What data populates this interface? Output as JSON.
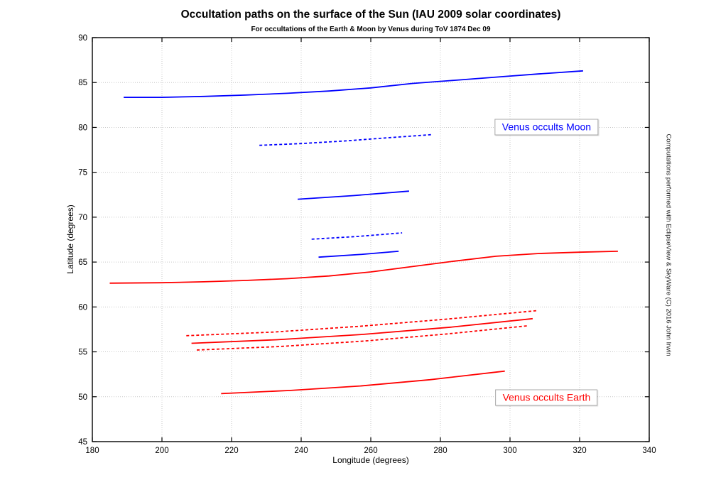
{
  "chart_data": {
    "type": "line",
    "title": "Occultation paths on the surface of the Sun (IAU 2009 solar coordinates)",
    "subtitle": "For occultations of the Earth & Moon by Venus during ToV 1874 Dec 09",
    "xlabel": "Longitude (degrees)",
    "ylabel": "Latitude (degrees)",
    "xlim": [
      180,
      340
    ],
    "ylim": [
      45,
      90
    ],
    "xticks": [
      180,
      200,
      220,
      240,
      260,
      280,
      300,
      320,
      340
    ],
    "yticks": [
      45,
      50,
      55,
      60,
      65,
      70,
      75,
      80,
      85,
      90
    ],
    "grid": true,
    "legend_position": "none",
    "colors": {
      "moon_paths": "#0000ff",
      "earth_paths": "#ff0000",
      "grid": "#c9c9c9",
      "axis": "#000000"
    },
    "annotations": [
      {
        "text": "Venus occults Moon",
        "x": 310.5,
        "y": 80.0,
        "color": "#0000ff"
      },
      {
        "text": "Venus occults Earth",
        "x": 310.5,
        "y": 49.9,
        "color": "#ff0000"
      }
    ],
    "side_note": "Computations performed with EclipseView & SkyWare (C) 2016 John Irwin",
    "series": [
      {
        "name": "moon-path-long-solid",
        "group": "Venus occults Moon",
        "color": "#0000ff",
        "style": "solid",
        "points": [
          [
            189,
            83.35
          ],
          [
            200,
            83.35
          ],
          [
            212,
            83.45
          ],
          [
            224,
            83.6
          ],
          [
            236,
            83.8
          ],
          [
            248,
            84.05
          ],
          [
            260,
            84.4
          ],
          [
            272,
            84.9
          ],
          [
            284,
            85.25
          ],
          [
            296,
            85.6
          ],
          [
            308,
            85.95
          ],
          [
            321,
            86.3
          ]
        ]
      },
      {
        "name": "moon-path-dashed-upper",
        "group": "Venus occults Moon",
        "color": "#0000ff",
        "style": "dashed",
        "points": [
          [
            228,
            78.0
          ],
          [
            240,
            78.2
          ],
          [
            253,
            78.5
          ],
          [
            265,
            78.85
          ],
          [
            277.5,
            79.2
          ]
        ]
      },
      {
        "name": "moon-path-mid-solid",
        "group": "Venus occults Moon",
        "color": "#0000ff",
        "style": "solid",
        "points": [
          [
            239,
            72.0
          ],
          [
            255,
            72.4
          ],
          [
            271,
            72.9
          ]
        ]
      },
      {
        "name": "moon-path-dashed-lower",
        "group": "Venus occults Moon",
        "color": "#0000ff",
        "style": "dashed",
        "points": [
          [
            243,
            67.55
          ],
          [
            256,
            67.85
          ],
          [
            269,
            68.25
          ]
        ]
      },
      {
        "name": "moon-path-short-solid",
        "group": "Venus occults Moon",
        "color": "#0000ff",
        "style": "solid",
        "points": [
          [
            245,
            65.55
          ],
          [
            257,
            65.85
          ],
          [
            268,
            66.2
          ]
        ]
      },
      {
        "name": "earth-path-long-solid",
        "group": "Venus occults Earth",
        "color": "#ff0000",
        "style": "solid",
        "points": [
          [
            185,
            62.65
          ],
          [
            200,
            62.7
          ],
          [
            212,
            62.8
          ],
          [
            224,
            62.95
          ],
          [
            236,
            63.15
          ],
          [
            248,
            63.45
          ],
          [
            260,
            63.9
          ],
          [
            272,
            64.5
          ],
          [
            284,
            65.1
          ],
          [
            296,
            65.65
          ],
          [
            308,
            65.95
          ],
          [
            320,
            66.1
          ],
          [
            331,
            66.2
          ]
        ]
      },
      {
        "name": "earth-path-dashed-upper",
        "group": "Venus occults Earth",
        "color": "#ff0000",
        "style": "dashed",
        "points": [
          [
            207,
            56.8
          ],
          [
            232,
            57.2
          ],
          [
            257,
            57.85
          ],
          [
            282,
            58.65
          ],
          [
            308,
            59.6
          ]
        ]
      },
      {
        "name": "earth-path-mid-solid",
        "group": "Venus occults Earth",
        "color": "#ff0000",
        "style": "solid",
        "points": [
          [
            208.5,
            55.95
          ],
          [
            233,
            56.35
          ],
          [
            258,
            56.95
          ],
          [
            283,
            57.75
          ],
          [
            306.5,
            58.7
          ]
        ]
      },
      {
        "name": "earth-path-dashed-lower",
        "group": "Venus occults Earth",
        "color": "#ff0000",
        "style": "dashed",
        "points": [
          [
            210,
            55.2
          ],
          [
            234,
            55.6
          ],
          [
            258,
            56.2
          ],
          [
            282,
            57.0
          ],
          [
            305,
            57.9
          ]
        ]
      },
      {
        "name": "earth-path-bottom-solid",
        "group": "Venus occults Earth",
        "color": "#ff0000",
        "style": "solid",
        "points": [
          [
            217,
            50.35
          ],
          [
            237,
            50.7
          ],
          [
            257,
            51.2
          ],
          [
            277,
            51.9
          ],
          [
            298.5,
            52.85
          ]
        ]
      }
    ]
  }
}
